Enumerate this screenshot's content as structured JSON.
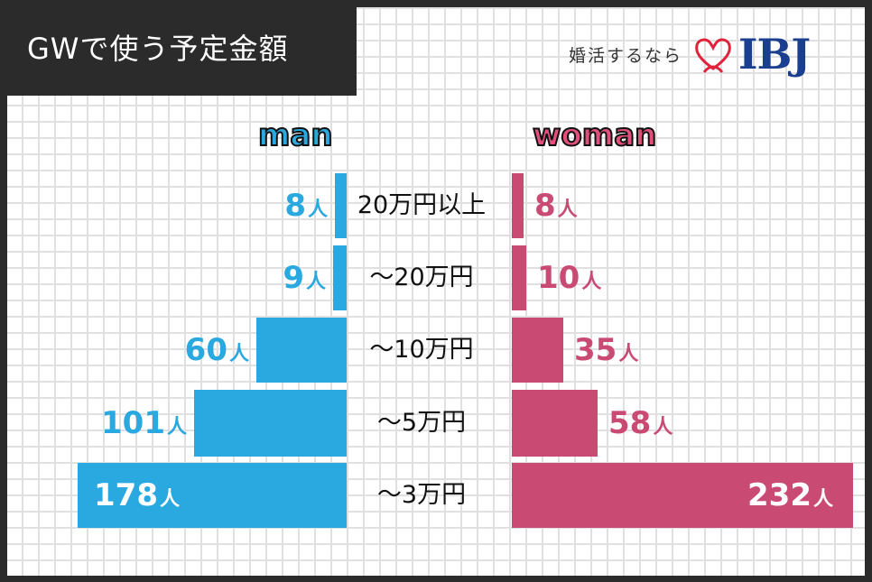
{
  "title": "GWで使う予定金額",
  "logo": {
    "subtitle": "婚活するなら",
    "brand": "IBJ",
    "heart_color": "#e2223b",
    "brand_color": "#1b3f8f"
  },
  "colors": {
    "man": "#2aa8e0",
    "woman": "#c94b74",
    "background": "#2b2b2b"
  },
  "chart_data": {
    "type": "bar",
    "title": "GWで使う予定金額",
    "orientation": "horizontal-butterfly",
    "categories": [
      "20万円以上",
      "〜20万円",
      "〜10万円",
      "〜5万円",
      "〜3万円"
    ],
    "series": [
      {
        "name": "man",
        "values": [
          8,
          9,
          60,
          101,
          178
        ],
        "unit": "人"
      },
      {
        "name": "woman",
        "values": [
          8,
          10,
          35,
          58,
          232
        ],
        "unit": "人"
      }
    ],
    "grid": true,
    "legend": "top"
  }
}
